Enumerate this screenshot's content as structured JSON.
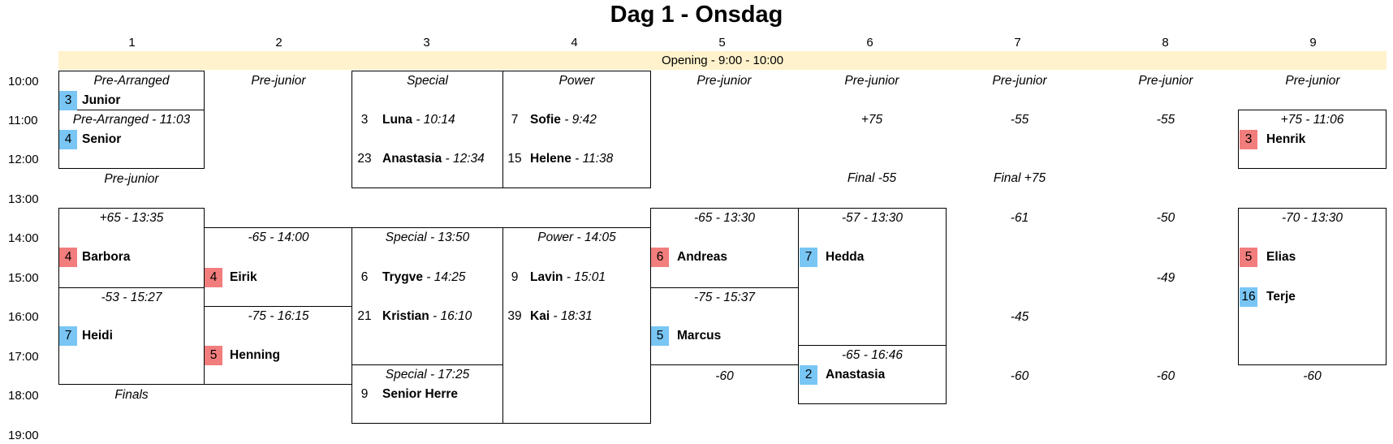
{
  "title": "Dag 1 - Onsdag",
  "columns": [
    "1",
    "2",
    "3",
    "4",
    "5",
    "6",
    "7",
    "8",
    "9"
  ],
  "opening": "Opening - 9:00 - 10:00",
  "times": [
    "10:00",
    "11:00",
    "12:00",
    "13:00",
    "14:00",
    "15:00",
    "16:00",
    "17:00",
    "18:00",
    "19:00"
  ],
  "c1": {
    "pre_arranged": "Pre-Arranged",
    "junior_num": "3",
    "junior": "Junior",
    "pre_arranged_2": "Pre-Arranged - 11:03",
    "senior_num": "4",
    "senior": "Senior",
    "pre_junior": "Pre-junior",
    "p65": "+65 - 13:35",
    "barbora_num": "4",
    "barbora": "Barbora",
    "m53": "-53 - 15:27",
    "heidi_num": "7",
    "heidi": "Heidi",
    "finals": "Finals"
  },
  "c2": {
    "pre_junior": "Pre-junior",
    "m65": "-65 - 14:00",
    "eirik_num": "4",
    "eirik": "Eirik",
    "m75": "-75 - 16:15",
    "henning_num": "5",
    "henning": "Henning"
  },
  "c3": {
    "special": "Special",
    "e1_num": "3",
    "e1_name": "Luna",
    "e1_time": " - 10:14",
    "e2_num": "23",
    "e2_name": "Anastasia",
    "e2_time": " - 12:34",
    "special_2": "Special - 13:50",
    "e3_num": "6",
    "e3_name": "Trygve",
    "e3_time": " - 14:25",
    "e4_num": "21",
    "e4_name": "Kristian",
    "e4_time": " - 16:10",
    "special_3": "Special - 17:25",
    "e5_num": "9",
    "e5_name": "Senior Herre"
  },
  "c4": {
    "power": "Power",
    "e1_num": "7",
    "e1_name": "Sofie",
    "e1_time": " - 9:42",
    "e2_num": "15",
    "e2_name": "Helene",
    "e2_time": " - 11:38",
    "power_2": "Power - 14:05",
    "e3_num": "9",
    "e3_name": "Lavin",
    "e3_time": " - 15:01",
    "e4_num": "39",
    "e4_name": "Kai",
    "e4_time": " - 18:31"
  },
  "c5": {
    "pre_junior": "Pre-junior",
    "m65": "-65 - 13:30",
    "andreas_num": "6",
    "andreas": "Andreas",
    "m75": "-75 - 15:37",
    "marcus_num": "5",
    "marcus": "Marcus",
    "m60": "-60"
  },
  "c6": {
    "pre_junior": "Pre-junior",
    "p75": "+75",
    "final_m55": "Final -55",
    "m57": "-57 - 13:30",
    "hedda_num": "7",
    "hedda": "Hedda",
    "m65": "-65 - 16:46",
    "anastasia_num": "2",
    "anastasia": "Anastasia"
  },
  "c7": {
    "pre_junior": "Pre-junior",
    "m55": "-55",
    "final_p75": "Final +75",
    "m61": "-61",
    "m45": "-45",
    "m60": "-60"
  },
  "c8": {
    "pre_junior": "Pre-junior",
    "m55": "-55",
    "m50": "-50",
    "m49": "-49",
    "m60": "-60"
  },
  "c9": {
    "pre_junior": "Pre-junior",
    "p75": "+75 - 11:06",
    "henrik_num": "3",
    "henrik": "Henrik",
    "m70": "-70 - 13:30",
    "elias_num": "5",
    "elias": "Elias",
    "terje_num": "16",
    "terje": "Terje",
    "m60": "-60"
  },
  "colors": {
    "opening_bg": "#fff2cc",
    "blue": "#79c6f5",
    "red": "#f27d7d"
  }
}
